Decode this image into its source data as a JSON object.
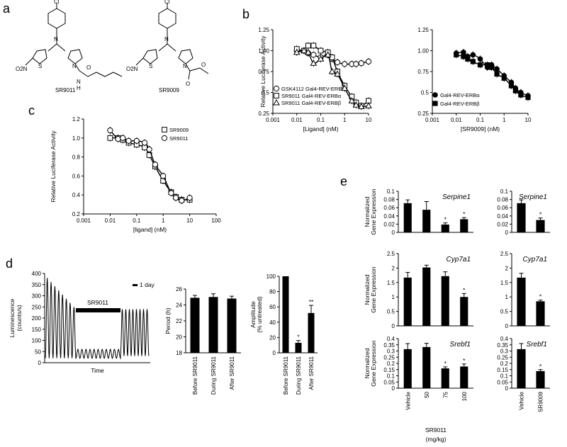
{
  "panel_labels": {
    "a": "a",
    "b": "b",
    "c": "c",
    "d": "d",
    "e": "e"
  },
  "panel_a": {
    "compounds": [
      {
        "name": "SR9011",
        "atoms": [
          "Cl",
          "N",
          "O2N",
          "S",
          "N",
          "O",
          "N",
          "H"
        ]
      },
      {
        "name": "SR9009",
        "atoms": [
          "Cl",
          "N",
          "O2N",
          "S",
          "N",
          "O",
          "O"
        ]
      }
    ]
  },
  "colors": {
    "line": "#000000",
    "bar": "#000000",
    "background": "#ffffff"
  },
  "chart_data": [
    {
      "id": "b-left",
      "type": "line",
      "xlabel": "[Ligand] (nM)",
      "ylabel": "Relative Luciferase Activity",
      "xscale": "log",
      "xlim": [
        0.001,
        10
      ],
      "ylim": [
        0.25,
        1.25
      ],
      "xticks": [
        "0.001",
        "0.01",
        "0.1",
        "1",
        "10"
      ],
      "yticks": [
        "0.25",
        "0.5",
        "0.75",
        "1.00",
        "1.25"
      ],
      "legend_position": "bottom-left",
      "x": [
        0.01,
        0.02,
        0.03,
        0.05,
        0.1,
        0.2,
        0.3,
        0.5,
        1,
        2,
        3,
        5,
        10
      ],
      "series": [
        {
          "name": "GSK4112 Gal4-REV-ERBα",
          "marker": "circle",
          "values": [
            1.0,
            1.0,
            0.97,
            0.95,
            0.92,
            0.95,
            0.9,
            0.86,
            0.84,
            0.84,
            0.84,
            0.85,
            0.87
          ]
        },
        {
          "name": "SR9011 Gal4-REV-ERBα",
          "marker": "square",
          "values": [
            1.02,
            1.0,
            1.06,
            1.06,
            1.0,
            0.98,
            0.92,
            0.75,
            0.58,
            0.45,
            0.38,
            0.34,
            0.4
          ]
        },
        {
          "name": "SR9011 Gal4-REV-ERBβ",
          "marker": "triangle",
          "values": [
            0.98,
            1.0,
            0.98,
            0.85,
            0.9,
            0.95,
            0.75,
            0.72,
            0.55,
            0.4,
            0.35,
            0.33,
            0.34
          ]
        }
      ]
    },
    {
      "id": "b-right",
      "type": "line",
      "xlabel": "[SR9009] (nM)",
      "ylabel": "",
      "xscale": "log",
      "xlim": [
        0.001,
        10
      ],
      "ylim": [
        0.25,
        1.25
      ],
      "xticks": [
        "0.001",
        "0.01",
        "0.1",
        "1",
        "10"
      ],
      "yticks": [
        "0.25",
        "0.5",
        "0.75",
        "1.00",
        "1.25"
      ],
      "legend_position": "bottom-left",
      "x": [
        0.01,
        0.02,
        0.03,
        0.05,
        0.1,
        0.2,
        0.3,
        0.5,
        1,
        2,
        3,
        5,
        10
      ],
      "series": [
        {
          "name": "Gal4-REV-ERBα",
          "marker": "filled-circle",
          "values": [
            0.97,
            0.98,
            0.93,
            0.95,
            0.9,
            0.8,
            0.83,
            0.78,
            0.7,
            0.62,
            0.55,
            0.5,
            0.46
          ]
        },
        {
          "name": "Gal4-REV-ERBβ",
          "marker": "filled-square",
          "values": [
            0.95,
            0.93,
            0.9,
            0.87,
            0.83,
            0.83,
            0.8,
            0.72,
            0.67,
            0.58,
            0.52,
            0.47,
            0.44
          ]
        }
      ]
    },
    {
      "id": "c",
      "type": "line",
      "xlabel": "[ligand] (nM)",
      "ylabel": "Relative Luciferase Activity",
      "xscale": "log",
      "xlim": [
        0.001,
        100
      ],
      "ylim": [
        0.2,
        1.2
      ],
      "xticks": [
        "0.001",
        "0.01",
        "0.1",
        "1",
        "10",
        "100"
      ],
      "yticks": [
        "0.2",
        "0.4",
        "0.6",
        "0.8",
        "1.0",
        "1.2"
      ],
      "legend_position": "top-right",
      "x": [
        0.01,
        0.02,
        0.03,
        0.05,
        0.1,
        0.2,
        0.3,
        0.5,
        1,
        2,
        3,
        5,
        10
      ],
      "series": [
        {
          "name": "SR9009",
          "marker": "square",
          "values": [
            1.0,
            1.0,
            0.98,
            0.95,
            0.93,
            0.9,
            0.82,
            0.7,
            0.55,
            0.43,
            0.38,
            0.35,
            0.35
          ]
        },
        {
          "name": "SR9011",
          "marker": "circle",
          "values": [
            1.08,
            0.99,
            1.0,
            0.97,
            0.97,
            0.95,
            0.88,
            0.72,
            0.6,
            0.42,
            0.37,
            0.34,
            0.37
          ]
        }
      ]
    },
    {
      "id": "d-trace",
      "type": "line",
      "xlabel": "Time",
      "ylabel": "Luminescence (counts/s)",
      "ylim": [
        0,
        400
      ],
      "yticks": [
        "0",
        "50",
        "100",
        "150",
        "200",
        "250",
        "300",
        "350",
        "400"
      ],
      "annotations": [
        "SR9011",
        "1 day"
      ],
      "phases": [
        {
          "name": "Before SR9011",
          "cycles": 8,
          "peak_start": 380,
          "peak_end": 250,
          "trough": 20
        },
        {
          "name": "During SR9011",
          "cycles": 11,
          "peak_start": 60,
          "peak_end": 60,
          "trough": 20
        },
        {
          "name": "After SR9011",
          "cycles": 8,
          "peak_start": 240,
          "peak_end": 240,
          "trough": 30
        }
      ]
    },
    {
      "id": "d-period",
      "type": "bar",
      "ylabel": "Period (h)",
      "ylim": [
        18,
        26
      ],
      "yticks": [
        "18",
        "20",
        "22",
        "24",
        "26"
      ],
      "categories": [
        "Before SR9011",
        "During SR9011",
        "After SR9011"
      ],
      "values": [
        24.9,
        25.0,
        24.8
      ],
      "errors": [
        0.3,
        0.4,
        0.3
      ]
    },
    {
      "id": "d-amplitude",
      "type": "bar",
      "ylabel": "Amplitude (% untreated)",
      "ylim": [
        0,
        100
      ],
      "yticks": [
        "0",
        "20",
        "40",
        "60",
        "80",
        "100"
      ],
      "categories": [
        "Before SR9011",
        "During SR9011",
        "After SR9011"
      ],
      "values": [
        100,
        13,
        52
      ],
      "errors": [
        0,
        3,
        10
      ],
      "sig": [
        "",
        "*",
        "**"
      ]
    },
    {
      "id": "e-serpine1-a",
      "type": "bar",
      "title": "Serpine1",
      "ylabel": "Normalized Gene Expression",
      "ylim": [
        0,
        0.1
      ],
      "yticks": [
        "0",
        "0.02",
        "0.04",
        "0.06",
        "0.08",
        "0.1"
      ],
      "categories": [
        "Vehicle",
        "50",
        "75",
        "100"
      ],
      "values": [
        0.071,
        0.055,
        0.019,
        0.032
      ],
      "errors": [
        0.008,
        0.02,
        0.004,
        0.004
      ],
      "sig": [
        "",
        "",
        "*",
        "*"
      ]
    },
    {
      "id": "e-serpine1-b",
      "type": "bar",
      "title": "Serpine1",
      "ylim": [
        0,
        0.1
      ],
      "yticks": [
        "0",
        "0.02",
        "0.04",
        "0.06",
        "0.08",
        "0.1"
      ],
      "categories": [
        "Vehicle",
        "SR9009"
      ],
      "values": [
        0.071,
        0.03
      ],
      "errors": [
        0.008,
        0.005
      ],
      "sig": [
        "",
        "*"
      ]
    },
    {
      "id": "e-cyp7a1-a",
      "type": "bar",
      "title": "Cyp7a1",
      "ylabel": "Normalized Gene Expression",
      "ylim": [
        0,
        2.5
      ],
      "yticks": [
        "0",
        "0.5",
        "1",
        "1.5",
        "2",
        "2.5"
      ],
      "categories": [
        "Vehicle",
        "50",
        "75",
        "100"
      ],
      "values": [
        1.67,
        2.02,
        1.72,
        1.0
      ],
      "errors": [
        0.18,
        0.08,
        0.15,
        0.12
      ],
      "sig": [
        "",
        "",
        "",
        "*"
      ]
    },
    {
      "id": "e-cyp7a1-b",
      "type": "bar",
      "title": "Cyp7a1",
      "ylim": [
        0,
        2.5
      ],
      "yticks": [
        "0",
        "0.5",
        "1",
        "1.5",
        "2",
        "2.5"
      ],
      "categories": [
        "Vehicle",
        "SR9009"
      ],
      "values": [
        1.67,
        0.85
      ],
      "errors": [
        0.15,
        0.04
      ],
      "sig": [
        "",
        "*"
      ]
    },
    {
      "id": "e-srebf1-a",
      "type": "bar",
      "title": "Srebf1",
      "ylabel": "Normalized Gene Expression",
      "ylim": [
        0,
        0.4
      ],
      "yticks": [
        "0",
        "0.05",
        "0.1",
        "0.15",
        "0.2",
        "0.25",
        "0.3",
        "0.35",
        "0.4"
      ],
      "categories": [
        "Vehicle",
        "50",
        "75",
        "100"
      ],
      "values": [
        0.315,
        0.332,
        0.16,
        0.175
      ],
      "errors": [
        0.045,
        0.03,
        0.012,
        0.02
      ],
      "sig": [
        "",
        "",
        "*",
        "*"
      ],
      "xlabel_main": "SR9011",
      "xlabel_unit": "(mg/kg)"
    },
    {
      "id": "e-srebf1-b",
      "type": "bar",
      "title": "Srebf1",
      "ylim": [
        0,
        0.4
      ],
      "yticks": [
        "0",
        "0.05",
        "0.1",
        "0.15",
        "0.2",
        "0.25",
        "0.3",
        "0.35",
        "0.4"
      ],
      "categories": [
        "Vehicle",
        "SR9009"
      ],
      "values": [
        0.315,
        0.138
      ],
      "errors": [
        0.045,
        0.012
      ],
      "sig": [
        "",
        "*"
      ]
    }
  ]
}
